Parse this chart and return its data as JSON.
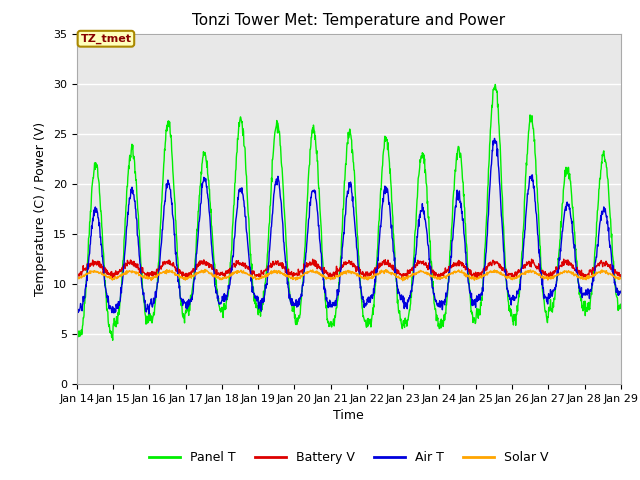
{
  "title": "Tonzi Tower Met: Temperature and Power",
  "xlabel": "Time",
  "ylabel": "Temperature (C) / Power (V)",
  "xlim_days": [
    14,
    29
  ],
  "ylim": [
    0,
    35
  ],
  "yticks": [
    0,
    5,
    10,
    15,
    20,
    25,
    30,
    35
  ],
  "xtick_labels": [
    "Jan 14",
    "Jan 15",
    "Jan 16",
    "Jan 17",
    "Jan 18",
    "Jan 19",
    "Jan 20",
    "Jan 21",
    "Jan 22",
    "Jan 23",
    "Jan 24",
    "Jan 25",
    "Jan 26",
    "Jan 27",
    "Jan 28",
    "Jan 29"
  ],
  "colors": {
    "panel_t": "#00EE00",
    "battery_v": "#DD0000",
    "air_t": "#0000DD",
    "solar_v": "#FFA500"
  },
  "legend_labels": [
    "Panel T",
    "Battery V",
    "Air T",
    "Solar V"
  ],
  "annotation_text": "TZ_tmet",
  "annotation_color": "#880000",
  "annotation_bg": "#FFFFBB",
  "annotation_border": "#AA8800",
  "bg_color": "#E8E8E8",
  "fig_bg": "#FFFFFF",
  "grid_color": "#FFFFFF",
  "title_fontsize": 11,
  "axis_fontsize": 9,
  "tick_fontsize": 8,
  "linewidth": 1.0
}
